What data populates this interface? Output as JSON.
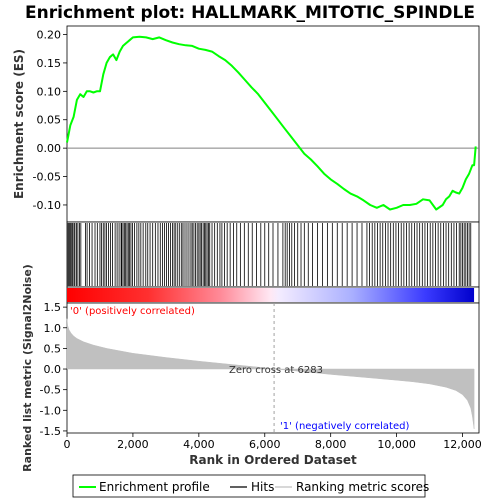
{
  "chart_data": {
    "type": "line",
    "title": "Enrichment plot: HALLMARK_MITOTIC_SPINDLE",
    "xlabel": "Rank in Ordered Dataset",
    "x_ticks": [
      0,
      2000,
      4000,
      6000,
      8000,
      10000,
      12000
    ],
    "x_tick_labels": [
      "0",
      "2,000",
      "4,000",
      "6,000",
      "8,000",
      "10,000",
      "12,000"
    ],
    "xlim": [
      0,
      12500
    ],
    "enrichment": {
      "ylabel": "Enrichment score (ES)",
      "ylim": [
        -0.13,
        0.215
      ],
      "y_ticks": [
        -0.1,
        -0.05,
        0.0,
        0.05,
        0.1,
        0.15,
        0.2
      ],
      "y_tick_labels": [
        "-0.10",
        "-0.05",
        "0.00",
        "0.05",
        "0.10",
        "0.15",
        "0.20"
      ],
      "color": "#00ff00",
      "x": [
        0,
        100,
        200,
        300,
        400,
        500,
        600,
        700,
        800,
        900,
        1000,
        1100,
        1200,
        1300,
        1400,
        1500,
        1600,
        1700,
        1800,
        1900,
        2000,
        2200,
        2400,
        2600,
        2800,
        3000,
        3200,
        3400,
        3600,
        3800,
        4000,
        4200,
        4400,
        4600,
        4800,
        5000,
        5200,
        5400,
        5600,
        5800,
        6000,
        6200,
        6400,
        6600,
        6800,
        7000,
        7200,
        7400,
        7600,
        7800,
        8000,
        8200,
        8400,
        8600,
        8800,
        9000,
        9200,
        9400,
        9600,
        9800,
        10000,
        10200,
        10400,
        10600,
        10800,
        11000,
        11200,
        11400,
        11500,
        11600,
        11700,
        11800,
        11900,
        12000,
        12100,
        12200,
        12300,
        12350,
        12400
      ],
      "y": [
        0.01,
        0.04,
        0.055,
        0.085,
        0.095,
        0.09,
        0.1,
        0.1,
        0.098,
        0.1,
        0.1,
        0.13,
        0.15,
        0.16,
        0.165,
        0.155,
        0.17,
        0.18,
        0.185,
        0.19,
        0.195,
        0.196,
        0.195,
        0.192,
        0.195,
        0.19,
        0.186,
        0.183,
        0.181,
        0.18,
        0.175,
        0.173,
        0.17,
        0.162,
        0.155,
        0.145,
        0.133,
        0.12,
        0.107,
        0.095,
        0.08,
        0.065,
        0.05,
        0.035,
        0.02,
        0.005,
        -0.01,
        -0.02,
        -0.032,
        -0.045,
        -0.055,
        -0.063,
        -0.072,
        -0.08,
        -0.085,
        -0.092,
        -0.1,
        -0.105,
        -0.1,
        -0.108,
        -0.105,
        -0.1,
        -0.1,
        -0.098,
        -0.09,
        -0.092,
        -0.108,
        -0.1,
        -0.09,
        -0.085,
        -0.075,
        -0.078,
        -0.08,
        -0.07,
        -0.055,
        -0.045,
        -0.03,
        -0.03,
        0.003
      ]
    },
    "hits": [
      10,
      40,
      70,
      100,
      130,
      170,
      210,
      240,
      290,
      330,
      380,
      420,
      560,
      610,
      680,
      760,
      850,
      920,
      1000,
      1050,
      1100,
      1150,
      1200,
      1260,
      1320,
      1380,
      1460,
      1520,
      1580,
      1640,
      1660,
      1700,
      1740,
      1780,
      1820,
      1860,
      1900,
      1940,
      1990,
      2050,
      2120,
      2180,
      2240,
      2310,
      2390,
      2450,
      2520,
      2600,
      2680,
      2760,
      2830,
      2900,
      2960,
      3020,
      3080,
      3140,
      3200,
      3250,
      3300,
      3360,
      3420,
      3480,
      3520,
      3580,
      3640,
      3700,
      3760,
      3800,
      3850,
      3900,
      3950,
      4000,
      4040,
      4080,
      4130,
      4170,
      4210,
      4250,
      4290,
      4330,
      4400,
      4480,
      4560,
      4640,
      4700,
      4780,
      4860,
      4950,
      5050,
      5150,
      5260,
      5380,
      5500,
      5620,
      5750,
      5880,
      6000,
      6120,
      6250,
      6400,
      6550,
      6620,
      6680,
      6750,
      6820,
      6900,
      7000,
      7100,
      7200,
      7320,
      7450,
      7600,
      7750,
      7900,
      8050,
      8200,
      8350,
      8500,
      8650,
      8800,
      8950,
      9100,
      9180,
      9260,
      9340,
      9420,
      9500,
      9580,
      9660,
      9740,
      9820,
      9900,
      9980,
      10060,
      10140,
      10220,
      10300,
      10380,
      10460,
      10540,
      10620,
      10700,
      10780,
      10860,
      10940,
      11020,
      11100,
      11180,
      11260,
      11340,
      11420,
      11500,
      11580,
      11660,
      11740,
      11820,
      11900,
      11950,
      12000,
      12050,
      12100,
      12150,
      12200,
      12250
    ],
    "ranked_metric": {
      "ylabel": "Ranked list metric (Signal2Noise)",
      "ylim": [
        -1.55,
        1.6
      ],
      "y_ticks": [
        -1.5,
        -1.0,
        -0.5,
        0.0,
        0.5,
        1.0,
        1.5
      ],
      "y_tick_labels": [
        "-1.5",
        "-1.0",
        "-0.5",
        "0.0",
        "0.5",
        "1.0",
        "1.5"
      ],
      "fill_color": "#c0c0c0",
      "x": [
        0,
        20,
        60,
        120,
        200,
        300,
        500,
        800,
        1200,
        2000,
        3000,
        4000,
        5000,
        6000,
        6283,
        7000,
        8000,
        9000,
        10000,
        10500,
        11000,
        11500,
        11800,
        12000,
        12150,
        12250,
        12300,
        12350
      ],
      "y": [
        1.22,
        1.05,
        0.95,
        0.87,
        0.8,
        0.74,
        0.66,
        0.58,
        0.5,
        0.38,
        0.28,
        0.19,
        0.11,
        0.03,
        0.0,
        -0.05,
        -0.13,
        -0.2,
        -0.27,
        -0.31,
        -0.36,
        -0.44,
        -0.52,
        -0.62,
        -0.76,
        -0.95,
        -1.15,
        -1.45
      ]
    },
    "zero_cross": 6283,
    "annotations": {
      "zero_cross": "Zero cross at 6283",
      "positive": "'0' (positively correlated)",
      "negative": "'1' (negatively correlated)"
    },
    "legend": {
      "placement": "bottom",
      "items": [
        {
          "label": "Enrichment profile",
          "color": "#00ff00"
        },
        {
          "label": "Hits",
          "color": "#000000"
        },
        {
          "label": "Ranking metric scores",
          "color": "#c0c0c0"
        }
      ]
    },
    "colors": {
      "positive_label": "#ff0000",
      "negative_label": "#0000ff",
      "heat_positive": "#ff0000",
      "heat_negative": "#0000ff",
      "zero_line": "#808080"
    }
  }
}
